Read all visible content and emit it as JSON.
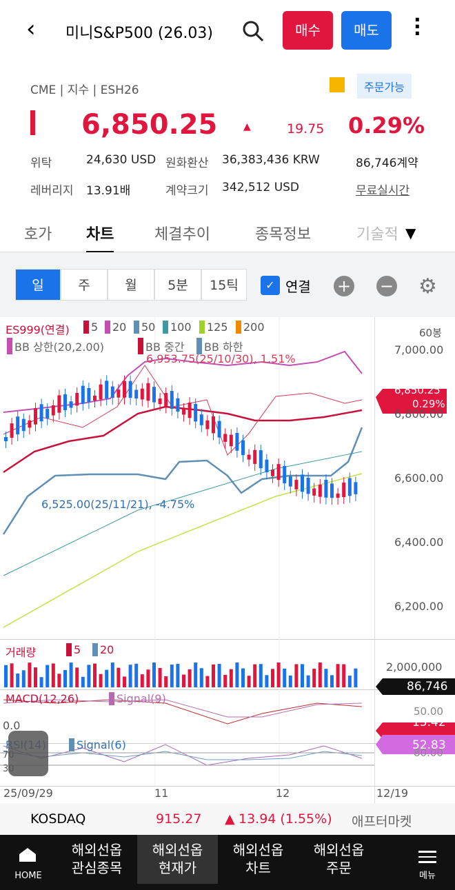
{
  "header": {
    "title": "미니S&P500 (26.03)",
    "buy": "매수",
    "sell": "매도"
  },
  "info": {
    "exchange": "CME | 지수 | ESH26",
    "order": "주문가능",
    "price": "6,850.25",
    "change": "19.75",
    "percent": "0.29%",
    "rows": [
      [
        "위탁",
        "24,630 USD",
        "원화환산",
        "36,383,436 KRW",
        "86,746계약"
      ],
      [
        "레버리지",
        "13.91배",
        "계약크기",
        "342,512 USD",
        "무료실시간"
      ]
    ]
  },
  "tabs": [
    "호가",
    "차트",
    "체결추이",
    "종목정보",
    "기술적"
  ],
  "periods": [
    "일",
    "주",
    "월",
    "5분",
    "15틱"
  ],
  "link": "연결",
  "chart": {
    "legend1": [
      "ES999(연결)",
      "5",
      "20",
      "50",
      "100",
      "125",
      "200"
    ],
    "legend2": [
      "BB 상한(20,2.00)",
      "BB 중간",
      "BB 하한"
    ],
    "bars": "60봉",
    "price_axis": [
      "7,000.00",
      "6,800.00",
      "6,600.00",
      "6,400.00",
      "6,200.00"
    ],
    "high_note": "6,953.75(25/10/30), 1.51%",
    "low_note": "6,525.00(25/11/21), -4.75%",
    "tag_price": "6,850.25",
    "tag_pct": "0.29%",
    "volume": {
      "legend": [
        "거래량",
        "5",
        "20"
      ],
      "axis": "2,000,000",
      "tag": "86,746"
    },
    "macd": {
      "legend": [
        "MACD(12,26)",
        "Signal(9)"
      ],
      "axis": [
        "50.00",
        "0.0"
      ],
      "tag": "15.42"
    },
    "rsi": {
      "legend": [
        "RSI(14)",
        "Signal(6)"
      ],
      "axis": [
        "80.00",
        "70",
        "30"
      ],
      "tag": "52.83"
    },
    "x_axis": [
      "25/09/29",
      "11",
      "12",
      "12/19"
    ]
  },
  "ticker": {
    "name": "KOSDAQ",
    "value": "915.27",
    "change": "13.94 (1.55%)",
    "session": "애프터마켓"
  },
  "nav": [
    "HOME",
    "해외선옵 관심종목",
    "해외선옵 현재가",
    "해외선옵 차트",
    "해외선옵 주문",
    "메뉴"
  ]
}
